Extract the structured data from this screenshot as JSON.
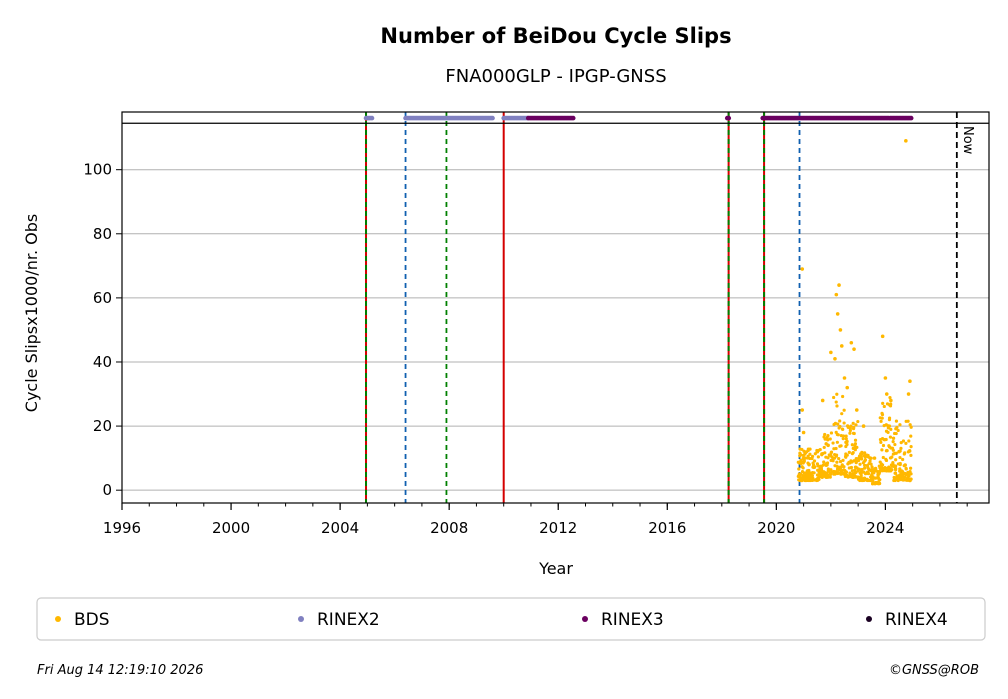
{
  "chart_data": {
    "type": "scatter",
    "title": "Number of BeiDou Cycle Slips",
    "subtitle": "FNA000GLP - IPGP-GNSS",
    "xlabel": "Year",
    "ylabel": "Cycle Slipsx1000/nr. Obs",
    "xlim": [
      1996,
      2027.8
    ],
    "ylim": [
      -4,
      118
    ],
    "x_ticks": [
      "1996",
      "2000",
      "2004",
      "2008",
      "2012",
      "2016",
      "2020",
      "2024"
    ],
    "y_ticks": [
      "0",
      "20",
      "40",
      "60",
      "80",
      "100"
    ],
    "grid": "horizontal",
    "legend_position": "bottom",
    "top_band_value": 114.5,
    "now_label": "Now",
    "now_year": 2026.62,
    "vertical_lines": [
      {
        "year": 2004.95,
        "style": "green-red-dashed"
      },
      {
        "year": 2006.4,
        "style": "blue-dashed"
      },
      {
        "year": 2007.9,
        "style": "green-dashed"
      },
      {
        "year": 2010.0,
        "style": "red-solid"
      },
      {
        "year": 2018.25,
        "style": "green-red-dashed"
      },
      {
        "year": 2019.55,
        "style": "green-red-dashed"
      },
      {
        "year": 2020.85,
        "style": "blue-dashed"
      },
      {
        "year": 2026.62,
        "style": "black-dashed"
      }
    ],
    "series": [
      {
        "name": "BDS",
        "color": "#FFB800",
        "points": [
          [
            2020.85,
            5.0
          ],
          [
            2020.95,
            25.0
          ],
          [
            2021.0,
            18.0
          ],
          [
            2021.05,
            10.0
          ],
          [
            2021.2,
            8.0
          ],
          [
            2021.5,
            12.0
          ],
          [
            2021.7,
            28.0
          ],
          [
            2021.9,
            14.0
          ],
          [
            2022.0,
            43.0
          ],
          [
            2022.15,
            41.0
          ],
          [
            2022.2,
            61.0
          ],
          [
            2022.25,
            55.0
          ],
          [
            2022.3,
            64.0
          ],
          [
            2022.35,
            50.0
          ],
          [
            2022.4,
            45.0
          ],
          [
            2022.5,
            35.0
          ],
          [
            2022.6,
            32.0
          ],
          [
            2022.75,
            46.0
          ],
          [
            2022.85,
            44.0
          ],
          [
            2022.95,
            25.0
          ],
          [
            2023.2,
            20.0
          ],
          [
            2023.6,
            10.0
          ],
          [
            2023.9,
            48.0
          ],
          [
            2024.0,
            35.0
          ],
          [
            2024.05,
            30.0
          ],
          [
            2024.2,
            28.0
          ],
          [
            2024.5,
            12.0
          ],
          [
            2024.75,
            109.0
          ],
          [
            2024.85,
            30.0
          ],
          [
            2024.9,
            34.0
          ],
          [
            2020.95,
            69.0
          ]
        ],
        "dense_segments": [
          {
            "from": 2020.8,
            "to": 2021.6,
            "low": 3,
            "high": 13
          },
          {
            "from": 2021.6,
            "to": 2022.1,
            "low": 4,
            "high": 18
          },
          {
            "from": 2022.1,
            "to": 2022.5,
            "low": 5,
            "high": 30
          },
          {
            "from": 2022.5,
            "to": 2023.0,
            "low": 4,
            "high": 22
          },
          {
            "from": 2023.0,
            "to": 2023.5,
            "low": 3,
            "high": 12
          },
          {
            "from": 2023.5,
            "to": 2023.8,
            "low": 2,
            "high": 8
          },
          {
            "from": 2023.8,
            "to": 2024.3,
            "low": 6,
            "high": 30
          },
          {
            "from": 2024.3,
            "to": 2024.95,
            "low": 3,
            "high": 22
          }
        ]
      },
      {
        "name": "RINEX2",
        "color": "#8080C0",
        "ranges": [
          [
            2004.95,
            2005.2
          ],
          [
            2006.4,
            2009.6
          ],
          [
            2010.0,
            2010.9
          ]
        ]
      },
      {
        "name": "RINEX3",
        "color": "#6A0060",
        "ranges": [
          [
            2010.9,
            2012.6
          ],
          [
            2018.2,
            2018.3
          ],
          [
            2019.5,
            2024.95
          ]
        ]
      },
      {
        "name": "RINEX4",
        "color": "#1A0022",
        "ranges": []
      }
    ],
    "footer_left": "Fri Aug 14 12:19:10 2026",
    "footer_right": "©GNSS@ROB"
  }
}
